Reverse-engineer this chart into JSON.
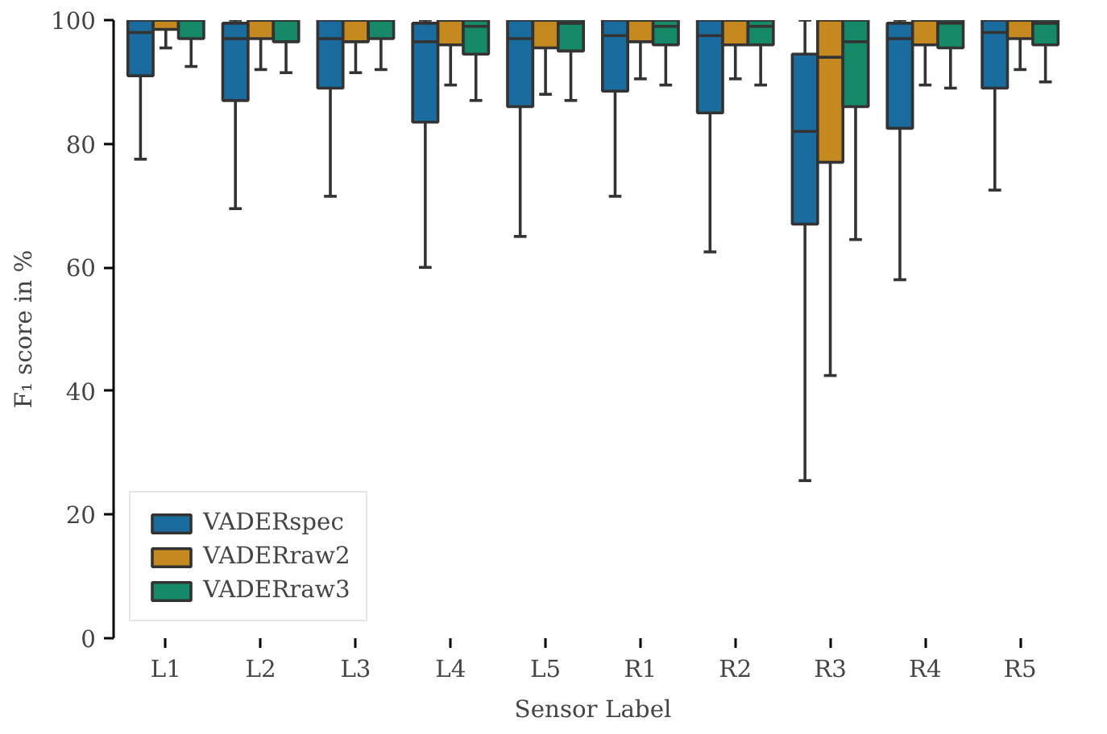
{
  "chart_data": {
    "type": "box",
    "xlabel": "Sensor Label",
    "ylabel": "F₁ score in %",
    "categories": [
      "L1",
      "L2",
      "L3",
      "L4",
      "L5",
      "R1",
      "R2",
      "R3",
      "R4",
      "R5"
    ],
    "ylim": [
      0,
      100
    ],
    "yticks": [
      0,
      20,
      40,
      60,
      80,
      100
    ],
    "grid": false,
    "legend": "bottom left",
    "series": [
      {
        "name": "VADERspec",
        "color": "#1b6c9e",
        "boxes": [
          {
            "low": 77.5,
            "q1": 91,
            "median": 98,
            "q3": 100,
            "high": 100
          },
          {
            "low": 69.5,
            "q1": 87,
            "median": 97,
            "q3": 99.5,
            "high": 100
          },
          {
            "low": 71.5,
            "q1": 89,
            "median": 97,
            "q3": 100,
            "high": 100
          },
          {
            "low": 60,
            "q1": 83.5,
            "median": 96.5,
            "q3": 99.5,
            "high": 100
          },
          {
            "low": 65,
            "q1": 86,
            "median": 97,
            "q3": 100,
            "high": 100
          },
          {
            "low": 71.5,
            "q1": 88.5,
            "median": 97.5,
            "q3": 100,
            "high": 100
          },
          {
            "low": 62.5,
            "q1": 85,
            "median": 97.5,
            "q3": 100,
            "high": 100
          },
          {
            "low": 25.5,
            "q1": 67,
            "median": 82,
            "q3": 94.5,
            "high": 100
          },
          {
            "low": 58,
            "q1": 82.5,
            "median": 97,
            "q3": 99.5,
            "high": 100
          },
          {
            "low": 72.5,
            "q1": 89,
            "median": 98,
            "q3": 100,
            "high": 100
          }
        ]
      },
      {
        "name": "VADERraw2",
        "color": "#c6891f",
        "boxes": [
          {
            "low": 95.5,
            "q1": 98.5,
            "median": 100,
            "q3": 100,
            "high": 100
          },
          {
            "low": 92,
            "q1": 97,
            "median": 100,
            "q3": 100,
            "high": 100
          },
          {
            "low": 91.5,
            "q1": 96.5,
            "median": 100,
            "q3": 100,
            "high": 100
          },
          {
            "low": 89.5,
            "q1": 96,
            "median": 100,
            "q3": 100,
            "high": 100
          },
          {
            "low": 88,
            "q1": 95.5,
            "median": 100,
            "q3": 100,
            "high": 100
          },
          {
            "low": 90.5,
            "q1": 96.5,
            "median": 100,
            "q3": 100,
            "high": 100
          },
          {
            "low": 90.5,
            "q1": 96,
            "median": 100,
            "q3": 100,
            "high": 100
          },
          {
            "low": 42.5,
            "q1": 77,
            "median": 94,
            "q3": 100,
            "high": 100
          },
          {
            "low": 89.5,
            "q1": 96,
            "median": 100,
            "q3": 100,
            "high": 100
          },
          {
            "low": 92,
            "q1": 97,
            "median": 100,
            "q3": 100,
            "high": 100
          }
        ]
      },
      {
        "name": "VADERraw3",
        "color": "#168a68",
        "boxes": [
          {
            "low": 92.5,
            "q1": 97,
            "median": 100,
            "q3": 100,
            "high": 100
          },
          {
            "low": 91.5,
            "q1": 96.5,
            "median": 100,
            "q3": 100,
            "high": 100
          },
          {
            "low": 92,
            "q1": 97,
            "median": 100,
            "q3": 100,
            "high": 100
          },
          {
            "low": 87,
            "q1": 94.5,
            "median": 99,
            "q3": 100,
            "high": 100
          },
          {
            "low": 87,
            "q1": 95,
            "median": 99.5,
            "q3": 100,
            "high": 100
          },
          {
            "low": 89.5,
            "q1": 96,
            "median": 99,
            "q3": 100,
            "high": 100
          },
          {
            "low": 89.5,
            "q1": 96,
            "median": 99,
            "q3": 100,
            "high": 100
          },
          {
            "low": 64.5,
            "q1": 86,
            "median": 96.5,
            "q3": 100,
            "high": 100
          },
          {
            "low": 89,
            "q1": 95.5,
            "median": 99.5,
            "q3": 100,
            "high": 100
          },
          {
            "low": 90,
            "q1": 96,
            "median": 99.5,
            "q3": 100,
            "high": 100
          }
        ]
      }
    ]
  }
}
